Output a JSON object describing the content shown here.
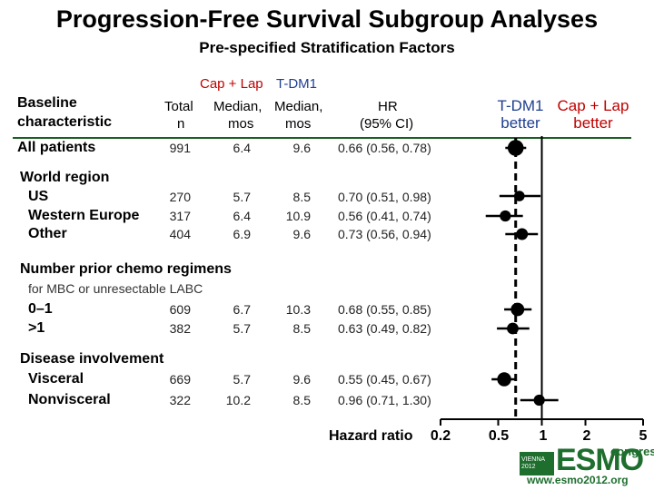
{
  "title": "Progression-Free Survival Subgroup Analyses",
  "subtitle": "Pre-specified Stratification Factors",
  "headers": {
    "arm_red": "Cap + Lap",
    "arm_blue": "T-DM1",
    "baseline_line1": "Baseline",
    "baseline_line2": "characteristic",
    "total_line1": "Total",
    "total_line2": "n",
    "median1_line1": "Median,",
    "median1_line2": "mos",
    "median2_line1": "Median,",
    "median2_line2": "mos",
    "hr_line1": "HR",
    "hr_line2": "(95% CI)",
    "favors_left_line1": "T-DM1",
    "favors_left_line2": "better",
    "favors_right_line1": "Cap + Lap",
    "favors_right_line2": "better"
  },
  "sections": {
    "world_region": "World region",
    "prior_chemo": "Number prior chemo regimens",
    "prior_chemo_sub": "for MBC or unresectable LABC",
    "disease": "Disease involvement"
  },
  "rows": [
    {
      "label": "All patients",
      "n": "991",
      "med_red": "6.4",
      "med_blue": "9.6",
      "hr_text": "0.66 (0.56, 0.78)"
    },
    {
      "label": "US",
      "n": "270",
      "med_red": "5.7",
      "med_blue": "8.5",
      "hr_text": "0.70 (0.51, 0.98)"
    },
    {
      "label": "Western Europe",
      "n": "317",
      "med_red": "6.4",
      "med_blue": "10.9",
      "hr_text": "0.56 (0.41, 0.74)"
    },
    {
      "label": "Other",
      "n": "404",
      "med_red": "6.9",
      "med_blue": "9.6",
      "hr_text": "0.73 (0.56, 0.94)"
    },
    {
      "label": "0–1",
      "n": "609",
      "med_red": "6.7",
      "med_blue": "10.3",
      "hr_text": "0.68 (0.55, 0.85)"
    },
    {
      "label": ">1",
      "n": "382",
      "med_red": "5.7",
      "med_blue": "8.5",
      "hr_text": "0.63 (0.49, 0.82)"
    },
    {
      "label": "Visceral",
      "n": "669",
      "med_red": "5.7",
      "med_blue": "9.6",
      "hr_text": "0.55 (0.45, 0.67)"
    },
    {
      "label": "Nonvisceral",
      "n": "322",
      "med_red": "10.2",
      "med_blue": "8.5",
      "hr_text": "0.96 (0.71, 1.30)"
    }
  ],
  "chart_data": {
    "type": "forest",
    "xlabel": "Hazard ratio",
    "x_scale": "log",
    "xlim": [
      0.2,
      5
    ],
    "ticks": [
      0.2,
      0.5,
      1,
      2,
      5
    ],
    "tick_labels": [
      "0.2",
      "0.5",
      "1",
      "2",
      "5"
    ],
    "reference_line": 0.66,
    "points": [
      {
        "label": "All patients",
        "hr": 0.66,
        "lo": 0.56,
        "hi": 0.78,
        "n": 991
      },
      {
        "label": "US",
        "hr": 0.7,
        "lo": 0.51,
        "hi": 0.98,
        "n": 270
      },
      {
        "label": "Western Europe",
        "hr": 0.56,
        "lo": 0.41,
        "hi": 0.74,
        "n": 317
      },
      {
        "label": "Other",
        "hr": 0.73,
        "lo": 0.56,
        "hi": 0.94,
        "n": 404
      },
      {
        "label": "0–1",
        "hr": 0.68,
        "lo": 0.55,
        "hi": 0.85,
        "n": 609
      },
      {
        "label": ">1",
        "hr": 0.63,
        "lo": 0.49,
        "hi": 0.82,
        "n": 382
      },
      {
        "label": "Visceral",
        "hr": 0.55,
        "lo": 0.45,
        "hi": 0.67,
        "n": 669
      },
      {
        "label": "Nonvisceral",
        "hr": 0.96,
        "lo": 0.71,
        "hi": 1.3,
        "n": 322
      }
    ]
  },
  "logo": {
    "line1": "VIENNA",
    "line2": "2012",
    "brand": "ESMO",
    "congress": "congress",
    "url": "www.esmo2012.org"
  },
  "colors": {
    "arm_red": "#c00000",
    "arm_blue": "#1f3f8f",
    "divider": "#1b5e20",
    "brand": "#1e6e2e"
  }
}
